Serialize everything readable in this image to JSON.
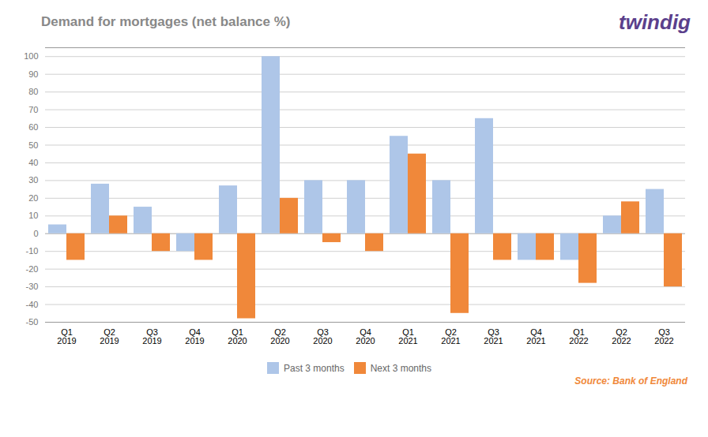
{
  "chart_data": {
    "type": "bar",
    "title": "Demand for mortgages (net balance %)",
    "categories": [
      "Q1\n2019",
      "Q2\n2019",
      "Q3\n2019",
      "Q4\n2019",
      "Q1\n2020",
      "Q2\n2020",
      "Q3\n2020",
      "Q4\n2020",
      "Q1\n2021",
      "Q2\n2021",
      "Q3\n2021",
      "Q4\n2021",
      "Q1\n2022",
      "Q2\n2022",
      "Q3\n2022"
    ],
    "series": [
      {
        "name": "Past 3 months",
        "color": "#aec6e8",
        "values": [
          5,
          28,
          15,
          -10,
          27,
          100,
          30,
          30,
          55,
          30,
          65,
          -15,
          -15,
          10,
          25
        ]
      },
      {
        "name": "Next 3 months",
        "color": "#f0883a",
        "values": [
          -15,
          10,
          -10,
          -15,
          -48,
          20,
          -5,
          -10,
          45,
          -45,
          -15,
          -15,
          -28,
          18,
          -30
        ]
      }
    ],
    "ylim": [
      -50,
      105
    ],
    "yticks": [
      -50,
      -40,
      -30,
      -20,
      -10,
      0,
      10,
      20,
      30,
      40,
      50,
      60,
      70,
      80,
      90,
      100
    ],
    "grid": true,
    "legend": "bottom",
    "annotations": [
      "Source: Bank of England",
      "twindig"
    ]
  }
}
